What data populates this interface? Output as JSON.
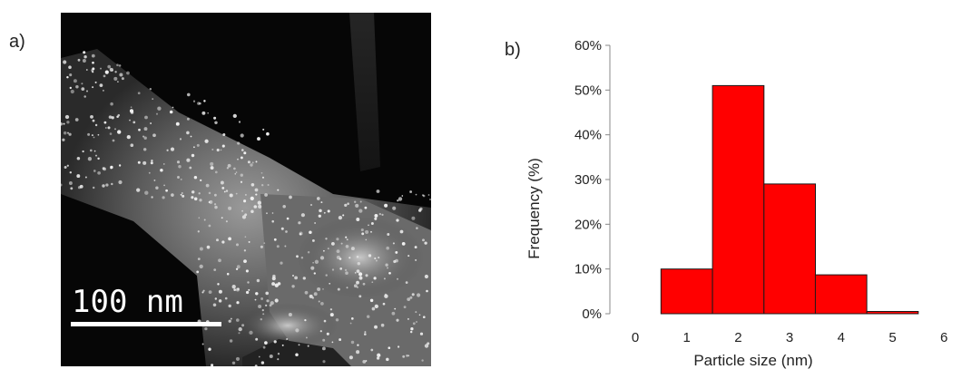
{
  "panels": {
    "a_label": "a)",
    "b_label": "b)"
  },
  "micrograph": {
    "scale_bar_label": "100  nm"
  },
  "chart_data": {
    "type": "bar",
    "categories": [
      "0",
      "1",
      "2",
      "3",
      "4",
      "5",
      "6"
    ],
    "values": [
      0,
      10,
      51,
      29,
      8.7,
      0.5,
      0
    ],
    "xlabel": "Particle size (nm)",
    "ylabel": "Frequency (%)",
    "ylim": [
      0,
      60
    ],
    "yticks": [
      "0%",
      "10%",
      "20%",
      "30%",
      "40%",
      "50%",
      "60%"
    ],
    "bar_color": "#ff0000",
    "bar_edge_color": "#1a1a1a",
    "grid": false,
    "legend": "none"
  }
}
